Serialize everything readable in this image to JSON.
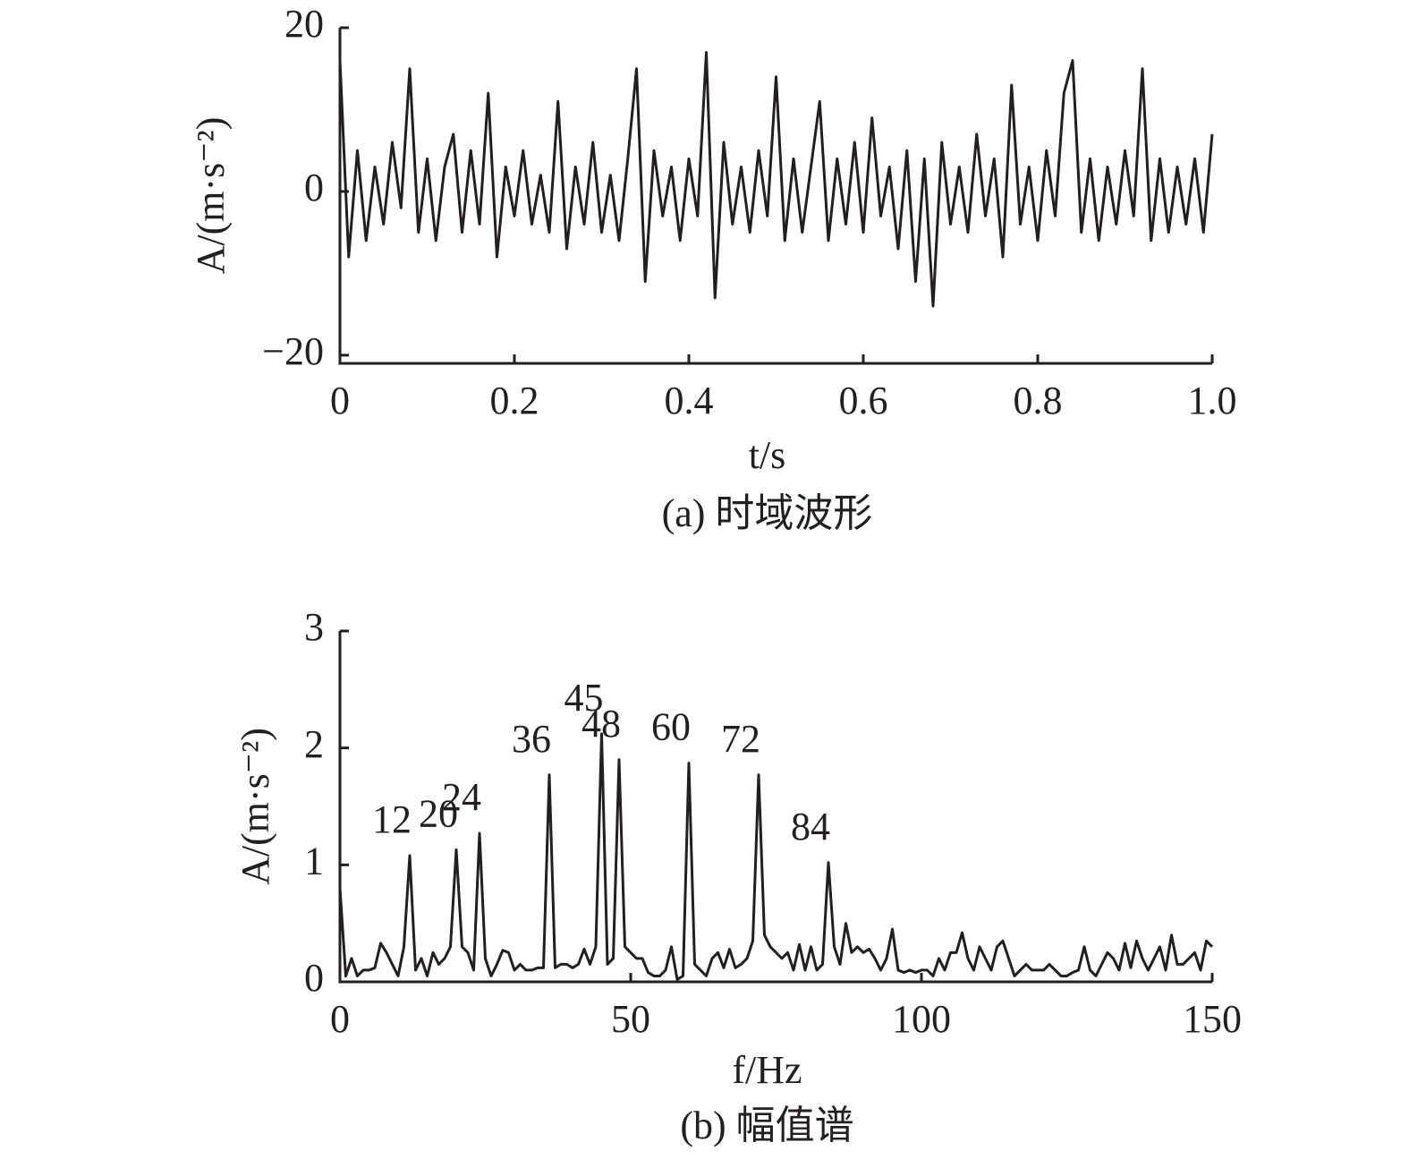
{
  "chart_data": [
    {
      "type": "line",
      "xlabel": "t/s",
      "ylabel": "A/(m·s⁻²)",
      "caption": "(a) 时域波形",
      "color": "#231f20",
      "xlim": [
        0,
        1
      ],
      "ylim": [
        -21,
        20
      ],
      "xticks": [
        0,
        0.2,
        0.4,
        0.6,
        0.8,
        {
          "value": 1,
          "label": "1.0"
        }
      ],
      "yticks": [
        {
          "value": -20,
          "label": "−20"
        },
        0,
        20
      ],
      "x": [
        0,
        0.01,
        0.02,
        0.03,
        0.04,
        0.05,
        0.06,
        0.07,
        0.08,
        0.09,
        0.1,
        0.11,
        0.12,
        0.13,
        0.14,
        0.15,
        0.16,
        0.17,
        0.18,
        0.19,
        0.2,
        0.21,
        0.22,
        0.23,
        0.24,
        0.25,
        0.26,
        0.27,
        0.28,
        0.29,
        0.3,
        0.31,
        0.32,
        0.33,
        0.34,
        0.35,
        0.36,
        0.37,
        0.38,
        0.39,
        0.4,
        0.41,
        0.42,
        0.43,
        0.44,
        0.45,
        0.46,
        0.47,
        0.48,
        0.49,
        0.5,
        0.51,
        0.52,
        0.53,
        0.54,
        0.55,
        0.56,
        0.57,
        0.58,
        0.59,
        0.6,
        0.61,
        0.62,
        0.63,
        0.64,
        0.65,
        0.66,
        0.67,
        0.68,
        0.69,
        0.7,
        0.71,
        0.72,
        0.73,
        0.74,
        0.75,
        0.76,
        0.77,
        0.78,
        0.79,
        0.8,
        0.81,
        0.82,
        0.83,
        0.84,
        0.85,
        0.86,
        0.87,
        0.88,
        0.89,
        0.9,
        0.91,
        0.92,
        0.93,
        0.94,
        0.95,
        0.96,
        0.97,
        0.98,
        0.99,
        1
      ],
      "values": [
        16,
        -8,
        5,
        -6,
        3,
        -4,
        6,
        -2,
        15,
        -5,
        4,
        -6,
        3,
        7,
        -5,
        5,
        -4,
        12,
        -8,
        3,
        -3,
        5,
        -4,
        2,
        -5,
        11,
        -7,
        3,
        -4,
        6,
        -5,
        2,
        -6,
        4,
        15,
        -11,
        5,
        -3,
        3,
        -6,
        4,
        -3,
        17,
        -13,
        6,
        -4,
        3,
        -5,
        5,
        -3,
        14,
        -6,
        4,
        -5,
        3,
        11,
        -6,
        4,
        -4,
        6,
        -5,
        9,
        -3,
        3,
        -7,
        5,
        -11,
        4,
        -14,
        6,
        -4,
        3,
        -5,
        7,
        -3,
        4,
        -8,
        13,
        -4,
        3,
        -6,
        5,
        -3,
        12,
        16,
        -5,
        4,
        -6,
        3,
        -4,
        5,
        -3,
        15,
        -6,
        4,
        -5,
        3,
        -4,
        4,
        -5,
        7
      ]
    },
    {
      "type": "line",
      "xlabel": "f/Hz",
      "ylabel": "A/(m·s⁻²)",
      "caption": "(b) 幅值谱",
      "color": "#231f20",
      "xlim": [
        0,
        150
      ],
      "ylim": [
        0,
        3
      ],
      "xticks": [
        0,
        50,
        100,
        150
      ],
      "yticks": [
        0,
        1,
        2,
        3
      ],
      "x": [
        0,
        1,
        2,
        3,
        4,
        5,
        6,
        7,
        8,
        9,
        10,
        11,
        12,
        13,
        14,
        15,
        16,
        17,
        18,
        19,
        20,
        21,
        22,
        23,
        24,
        25,
        26,
        27,
        28,
        29,
        30,
        31,
        32,
        33,
        34,
        35,
        36,
        37,
        38,
        39,
        40,
        41,
        42,
        43,
        44,
        45,
        46,
        47,
        48,
        49,
        50,
        51,
        52,
        53,
        54,
        55,
        56,
        57,
        58,
        59,
        60,
        61,
        62,
        63,
        64,
        65,
        66,
        67,
        68,
        69,
        70,
        71,
        72,
        73,
        74,
        75,
        76,
        77,
        78,
        79,
        80,
        81,
        82,
        83,
        84,
        85,
        86,
        87,
        88,
        89,
        90,
        91,
        92,
        93,
        94,
        95,
        96,
        97,
        98,
        99,
        100,
        101,
        102,
        103,
        104,
        105,
        106,
        107,
        108,
        109,
        110,
        111,
        112,
        113,
        114,
        115,
        116,
        117,
        118,
        119,
        120,
        121,
        122,
        123,
        124,
        125,
        126,
        127,
        128,
        129,
        130,
        131,
        132,
        133,
        134,
        135,
        136,
        137,
        138,
        139,
        140,
        141,
        142,
        143,
        144,
        145,
        146,
        147,
        148,
        149,
        150
      ],
      "values": [
        0.8,
        0.05,
        0.2,
        0.05,
        0.1,
        0.1,
        0.12,
        0.33,
        0.25,
        0.15,
        0.05,
        0.3,
        1.08,
        0.1,
        0.2,
        0.05,
        0.25,
        0.15,
        0.2,
        0.3,
        1.13,
        0.3,
        0.25,
        0.1,
        1.27,
        0.2,
        0.05,
        0.15,
        0.27,
        0.25,
        0.1,
        0.15,
        0.1,
        0.1,
        0.12,
        0.12,
        1.77,
        0.12,
        0.15,
        0.15,
        0.12,
        0.15,
        0.28,
        0.15,
        0.3,
        2.12,
        0.15,
        0.2,
        1.9,
        0.3,
        0.25,
        0.2,
        0.2,
        0.08,
        0.05,
        0.05,
        0.1,
        0.3,
        0.02,
        0.05,
        1.87,
        0.15,
        0.1,
        0.05,
        0.2,
        0.25,
        0.12,
        0.28,
        0.12,
        0.15,
        0.2,
        0.35,
        1.77,
        0.4,
        0.3,
        0.25,
        0.2,
        0.25,
        0.1,
        0.32,
        0.1,
        0.3,
        0.1,
        0.15,
        1.02,
        0.3,
        0.15,
        0.5,
        0.25,
        0.3,
        0.25,
        0.28,
        0.2,
        0.1,
        0.2,
        0.45,
        0.1,
        0.08,
        0.1,
        0.08,
        0.1,
        0.1,
        0.05,
        0.2,
        0.1,
        0.25,
        0.25,
        0.42,
        0.2,
        0.1,
        0.3,
        0.2,
        0.1,
        0.3,
        0.35,
        0.2,
        0.05,
        0.1,
        0.15,
        0.1,
        0.1,
        0.1,
        0.15,
        0.1,
        0.05,
        0.05,
        0.08,
        0.1,
        0.3,
        0.1,
        0.05,
        0.15,
        0.25,
        0.2,
        0.1,
        0.33,
        0.12,
        0.35,
        0.2,
        0.1,
        0.2,
        0.3,
        0.1,
        0.4,
        0.15,
        0.15,
        0.2,
        0.25,
        0.1,
        0.35,
        0.3
      ],
      "annotations": [
        {
          "text": "12",
          "x": 12
        },
        {
          "text": "20",
          "x": 20
        },
        {
          "text": "24",
          "x": 24
        },
        {
          "text": "36",
          "x": 36
        },
        {
          "text": "45",
          "x": 45
        },
        {
          "text": "48",
          "x": 48
        },
        {
          "text": "60",
          "x": 60
        },
        {
          "text": "72",
          "x": 72
        },
        {
          "text": "84",
          "x": 84
        }
      ]
    }
  ]
}
